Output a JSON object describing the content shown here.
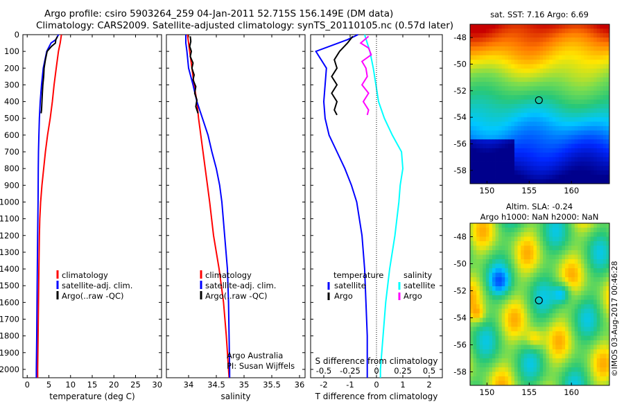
{
  "header": {
    "line1": "Argo profile: csiro 5903264_259 04-Jan-2011 52.715S 156.149E (DM data)",
    "line2": "Climatology: CARS2009. Satellite-adjusted climatology: synTS_20110105.nc (0.57d later)"
  },
  "colors": {
    "climatology": "#ff0000",
    "satellite": "#0000ff",
    "argo": "#000000",
    "salinity_sat": "#00ffff",
    "salinity_argo": "#ff00ff"
  },
  "chart_data": [
    {
      "type": "line",
      "panel": "temperature",
      "xlabel": "temperature (deg C)",
      "xlim": [
        -1,
        31
      ],
      "xticks": [
        0,
        5,
        10,
        15,
        20,
        25,
        30
      ],
      "ylim": [
        2050,
        0
      ],
      "yticks": [
        0,
        100,
        200,
        300,
        400,
        500,
        600,
        700,
        800,
        900,
        1000,
        1100,
        1200,
        1300,
        1400,
        1500,
        1600,
        1700,
        1800,
        1900,
        2000
      ],
      "legend": [
        "climatology",
        "satellite-adj. clim.",
        "Argo(..raw -QC)"
      ],
      "series": [
        {
          "name": "climatology",
          "color": "#ff0000",
          "points": [
            [
              7.9,
              0
            ],
            [
              7.6,
              50
            ],
            [
              7.2,
              100
            ],
            [
              6.7,
              200
            ],
            [
              6.2,
              300
            ],
            [
              5.8,
              400
            ],
            [
              5.3,
              500
            ],
            [
              4.7,
              600
            ],
            [
              4.2,
              700
            ],
            [
              3.8,
              800
            ],
            [
              3.4,
              900
            ],
            [
              3.1,
              1000
            ],
            [
              2.9,
              1100
            ],
            [
              2.8,
              1200
            ],
            [
              2.7,
              1400
            ],
            [
              2.6,
              1600
            ],
            [
              2.5,
              1800
            ],
            [
              2.4,
              2000
            ],
            [
              2.4,
              2050
            ]
          ]
        },
        {
          "name": "satellite-adj. clim.",
          "color": "#0000ff",
          "points": [
            [
              7.2,
              0
            ],
            [
              6.6,
              30
            ],
            [
              5.5,
              50
            ],
            [
              4.5,
              100
            ],
            [
              3.7,
              200
            ],
            [
              3.3,
              300
            ],
            [
              3.0,
              400
            ],
            [
              2.8,
              500
            ],
            [
              2.7,
              600
            ],
            [
              2.6,
              700
            ],
            [
              2.55,
              800
            ],
            [
              2.5,
              1000
            ],
            [
              2.4,
              1200
            ],
            [
              2.3,
              1500
            ],
            [
              2.2,
              1800
            ],
            [
              2.1,
              2000
            ],
            [
              2.1,
              2050
            ]
          ]
        },
        {
          "name": "Argo(..raw -QC)",
          "color": "#000000",
          "points": [
            [
              7.0,
              10
            ],
            [
              6.6,
              30
            ],
            [
              6.5,
              50
            ],
            [
              5.6,
              70
            ],
            [
              4.6,
              100
            ],
            [
              4.2,
              150
            ],
            [
              3.9,
              200
            ],
            [
              3.8,
              250
            ],
            [
              3.6,
              300
            ],
            [
              3.5,
              350
            ],
            [
              3.4,
              400
            ],
            [
              3.3,
              450
            ],
            [
              3.2,
              470
            ]
          ]
        }
      ]
    },
    {
      "type": "line",
      "panel": "salinity",
      "xlabel": "salinity",
      "xlim": [
        33.6,
        36.1
      ],
      "xticks": [
        34,
        34.5,
        35,
        35.5,
        36
      ],
      "ylim": [
        2050,
        0
      ],
      "legend": [
        "climatology",
        "satellite-adj. clim.",
        "Argo(..raw -QC)"
      ],
      "annotation": [
        "Argo Australia",
        "PI: Susan Wijffels"
      ],
      "series": [
        {
          "name": "climatology",
          "color": "#ff0000",
          "points": [
            [
              33.98,
              0
            ],
            [
              34.0,
              50
            ],
            [
              34.02,
              100
            ],
            [
              34.06,
              200
            ],
            [
              34.1,
              300
            ],
            [
              34.15,
              400
            ],
            [
              34.18,
              500
            ],
            [
              34.22,
              600
            ],
            [
              34.26,
              700
            ],
            [
              34.3,
              800
            ],
            [
              34.34,
              900
            ],
            [
              34.38,
              1000
            ],
            [
              34.45,
              1200
            ],
            [
              34.55,
              1400
            ],
            [
              34.63,
              1600
            ],
            [
              34.68,
              1800
            ],
            [
              34.72,
              2000
            ],
            [
              34.73,
              2050
            ]
          ]
        },
        {
          "name": "satellite-adj. clim.",
          "color": "#0000ff",
          "points": [
            [
              33.95,
              0
            ],
            [
              33.95,
              50
            ],
            [
              33.97,
              100
            ],
            [
              34.0,
              200
            ],
            [
              34.08,
              300
            ],
            [
              34.15,
              400
            ],
            [
              34.25,
              500
            ],
            [
              34.35,
              600
            ],
            [
              34.42,
              700
            ],
            [
              34.5,
              800
            ],
            [
              34.56,
              900
            ],
            [
              34.6,
              1000
            ],
            [
              34.65,
              1200
            ],
            [
              34.7,
              1400
            ],
            [
              34.72,
              1600
            ],
            [
              34.73,
              1800
            ],
            [
              34.74,
              2000
            ],
            [
              34.74,
              2050
            ]
          ]
        },
        {
          "name": "Argo(..raw -QC)",
          "color": "#000000",
          "points": [
            [
              34.03,
              10
            ],
            [
              34.04,
              40
            ],
            [
              34.02,
              70
            ],
            [
              34.05,
              100
            ],
            [
              34.03,
              130
            ],
            [
              34.08,
              170
            ],
            [
              34.06,
              200
            ],
            [
              34.1,
              240
            ],
            [
              34.08,
              270
            ],
            [
              34.13,
              310
            ],
            [
              34.11,
              350
            ],
            [
              34.15,
              390
            ],
            [
              34.13,
              430
            ],
            [
              34.17,
              470
            ]
          ]
        }
      ]
    },
    {
      "type": "line",
      "panel": "difference",
      "xlabel": "T difference from climatology",
      "xlabel_top": "S difference from climatology",
      "xlim": [
        -2.5,
        2.5
      ],
      "xticks": [
        -2,
        -1,
        0,
        1,
        2
      ],
      "sticks_labels": [
        "-0.5",
        "-0.25",
        "0",
        "0.25",
        "0.5"
      ],
      "ylim": [
        2050,
        0
      ],
      "legend": {
        "temperature": [
          "satellite",
          "Argo"
        ],
        "salinity": [
          "satellite",
          "Argo"
        ]
      },
      "legend_headers": [
        "temperature",
        "salinity"
      ],
      "series": [
        {
          "name": "temperature satellite",
          "color": "#0000ff",
          "points": [
            [
              -0.7,
              0
            ],
            [
              -1.1,
              30
            ],
            [
              -2.3,
              100
            ],
            [
              -2.1,
              150
            ],
            [
              -1.9,
              200
            ],
            [
              -1.95,
              300
            ],
            [
              -2.0,
              400
            ],
            [
              -1.95,
              500
            ],
            [
              -1.8,
              600
            ],
            [
              -1.5,
              700
            ],
            [
              -1.2,
              800
            ],
            [
              -0.95,
              900
            ],
            [
              -0.75,
              1000
            ],
            [
              -0.55,
              1200
            ],
            [
              -0.45,
              1400
            ],
            [
              -0.4,
              1600
            ],
            [
              -0.35,
              1800
            ],
            [
              -0.35,
              2000
            ],
            [
              -0.35,
              2050
            ]
          ]
        },
        {
          "name": "temperature Argo",
          "color": "#000000",
          "points": [
            [
              -0.9,
              10
            ],
            [
              -1.1,
              50
            ],
            [
              -1.4,
              100
            ],
            [
              -1.6,
              150
            ],
            [
              -1.5,
              200
            ],
            [
              -1.7,
              250
            ],
            [
              -1.5,
              300
            ],
            [
              -1.7,
              350
            ],
            [
              -1.5,
              400
            ],
            [
              -1.6,
              450
            ],
            [
              -1.5,
              480
            ]
          ]
        },
        {
          "name": "salinity satellite",
          "color": "#00ffff",
          "points": [
            [
              -0.45,
              0
            ],
            [
              -0.35,
              50
            ],
            [
              -0.25,
              100
            ],
            [
              -0.12,
              200
            ],
            [
              -0.02,
              300
            ],
            [
              0.08,
              400
            ],
            [
              0.3,
              500
            ],
            [
              0.6,
              600
            ],
            [
              0.95,
              700
            ],
            [
              1.0,
              800
            ],
            [
              0.9,
              900
            ],
            [
              0.85,
              1000
            ],
            [
              0.7,
              1200
            ],
            [
              0.5,
              1400
            ],
            [
              0.35,
              1600
            ],
            [
              0.25,
              1800
            ],
            [
              0.15,
              2000
            ],
            [
              0.15,
              2050
            ]
          ]
        },
        {
          "name": "salinity Argo",
          "color": "#ff00ff",
          "points": [
            [
              -0.3,
              10
            ],
            [
              -0.6,
              50
            ],
            [
              -0.3,
              80
            ],
            [
              -0.2,
              120
            ],
            [
              -0.55,
              160
            ],
            [
              -0.4,
              200
            ],
            [
              -0.35,
              250
            ],
            [
              -0.55,
              300
            ],
            [
              -0.3,
              350
            ],
            [
              -0.5,
              400
            ],
            [
              -0.3,
              450
            ],
            [
              -0.35,
              480
            ]
          ]
        }
      ]
    },
    {
      "type": "heatmap",
      "panel": "sst_map",
      "title": "sat. SST: 7.16 Argo: 6.69",
      "xticks": [
        150,
        155,
        160
      ],
      "yticks": [
        -48,
        -50,
        -52,
        -54,
        -56,
        -58
      ],
      "xlim": [
        148,
        164.5
      ],
      "ylim": [
        -59,
        -47
      ],
      "argo_position": [
        156.149,
        -52.715
      ]
    },
    {
      "type": "heatmap",
      "panel": "sla_map",
      "title": [
        "Altim. SLA: -0.24",
        "Argo h1000: NaN h2000: NaN"
      ],
      "xticks": [
        150,
        155,
        160
      ],
      "yticks": [
        -48,
        -50,
        -52,
        -54,
        -56,
        -58
      ],
      "xlim": [
        148,
        164.5
      ],
      "ylim": [
        -59,
        -47
      ],
      "argo_position": [
        156.149,
        -52.715
      ]
    }
  ],
  "credit": "©IMOS 03-Aug-2017 00:46:28"
}
